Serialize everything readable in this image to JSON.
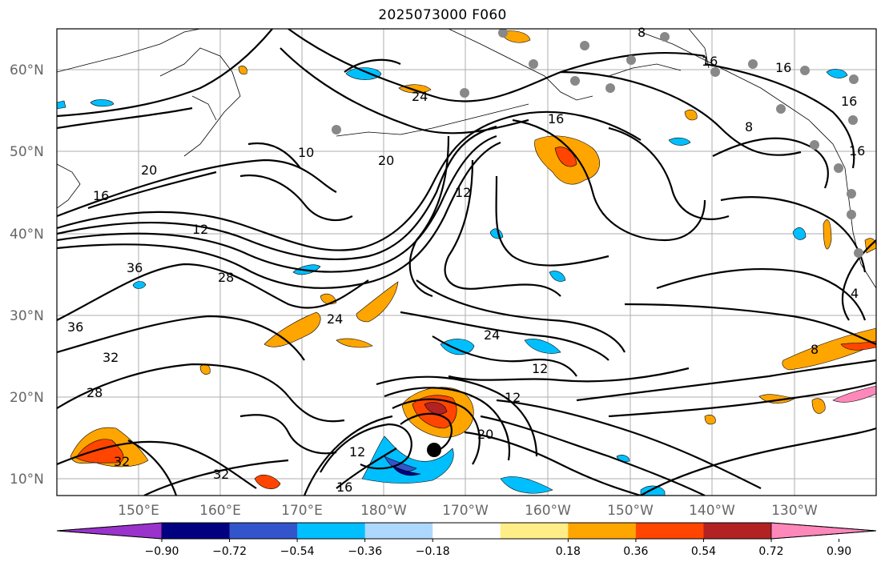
{
  "title": "2025073000 F060",
  "lat_labels": [
    "60°N",
    "50°N",
    "40°N",
    "30°N",
    "20°N",
    "10°N"
  ],
  "lon_labels": [
    "150°E",
    "160°E",
    "170°E",
    "180°W",
    "170°W",
    "160°W",
    "150°W",
    "140°W",
    "130°W"
  ],
  "colorbar": {
    "colors": [
      "#9933cc",
      "#000080",
      "#3355cc",
      "#00bfff",
      "#add8ff",
      "#ffffff",
      "#ffee88",
      "#ffa500",
      "#ff4500",
      "#b22222",
      "#ff88bb"
    ],
    "tick_labels": [
      "−0.90",
      "−0.72",
      "−0.54",
      "−0.36",
      "−0.18",
      "0.18",
      "0.36",
      "0.54",
      "0.72",
      "0.90"
    ]
  },
  "contour_labels": [
    "20",
    "16",
    "12",
    "28",
    "36",
    "36",
    "32",
    "28",
    "32",
    "24",
    "24",
    "12",
    "12",
    "24",
    "16",
    "16",
    "16",
    "8",
    "8",
    "4",
    "16",
    "10",
    "20",
    "12",
    "20",
    "16",
    "12",
    "8",
    "32",
    "16"
  ],
  "colors": {
    "positive_fill": "#ffa500",
    "negative_fill": "#00bfff",
    "marker": "#888888",
    "center_marker": "#000000"
  }
}
